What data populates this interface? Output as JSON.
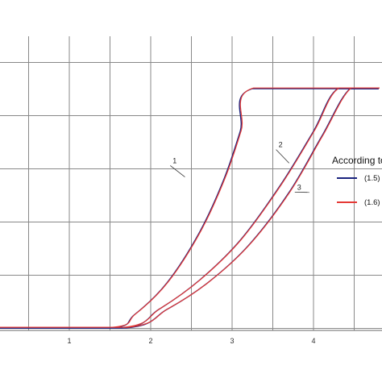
{
  "chart_data": {
    "type": "line",
    "title": "",
    "xlabel": "",
    "ylabel": "",
    "xlim": [
      0,
      4.8
    ],
    "ylim": [
      0,
      6.5
    ],
    "grid": true,
    "x_ticks": [
      {
        "value": 1,
        "label": "1"
      },
      {
        "value": 2,
        "label": "2"
      },
      {
        "value": 3,
        "label": "3"
      },
      {
        "value": 4,
        "label": "4"
      }
    ],
    "curve_labels": [
      {
        "label": "1",
        "text_at": [
          2.27,
          3.6
        ],
        "leader_to": [
          2.42,
          3.34
        ]
      },
      {
        "label": "2",
        "text_at": [
          3.57,
          3.9
        ],
        "leader_to": [
          3.7,
          3.6
        ]
      },
      {
        "label": "3",
        "text_at": [
          3.8,
          3.1
        ],
        "leader_to": [
          3.95,
          3.05
        ]
      }
    ],
    "legend": {
      "title": "According to",
      "placement": "right",
      "entries": [
        {
          "label": "(1.5)",
          "color": "#1a237e"
        },
        {
          "label": "(1.6)",
          "color": "#e53935"
        }
      ]
    },
    "series": [
      {
        "label": "1",
        "points": [
          [
            0,
            0.5
          ],
          [
            1.5,
            0.5
          ],
          [
            1.8,
            0.75
          ],
          [
            2.2,
            1.35
          ],
          [
            2.6,
            2.3
          ],
          [
            2.9,
            3.3
          ],
          [
            3.1,
            4.2
          ],
          [
            3.25,
            5.0
          ],
          [
            4.8,
            5.0
          ]
        ]
      },
      {
        "label": "2",
        "points": [
          [
            0,
            0.5
          ],
          [
            1.65,
            0.5
          ],
          [
            2.1,
            0.85
          ],
          [
            2.6,
            1.4
          ],
          [
            3.1,
            2.15
          ],
          [
            3.6,
            3.2
          ],
          [
            4.0,
            4.2
          ],
          [
            4.3,
            5.0
          ],
          [
            4.8,
            5.0
          ]
        ]
      },
      {
        "label": "3",
        "points": [
          [
            0,
            0.5
          ],
          [
            1.7,
            0.5
          ],
          [
            2.2,
            0.85
          ],
          [
            2.7,
            1.35
          ],
          [
            3.2,
            2.05
          ],
          [
            3.7,
            3.05
          ],
          [
            4.1,
            4.1
          ],
          [
            4.45,
            5.0
          ],
          [
            4.8,
            5.0
          ]
        ]
      }
    ]
  },
  "colors": {
    "grid": "#888888",
    "series_blue": "#1a237e",
    "series_red": "#e53935",
    "leader": "#333333"
  }
}
